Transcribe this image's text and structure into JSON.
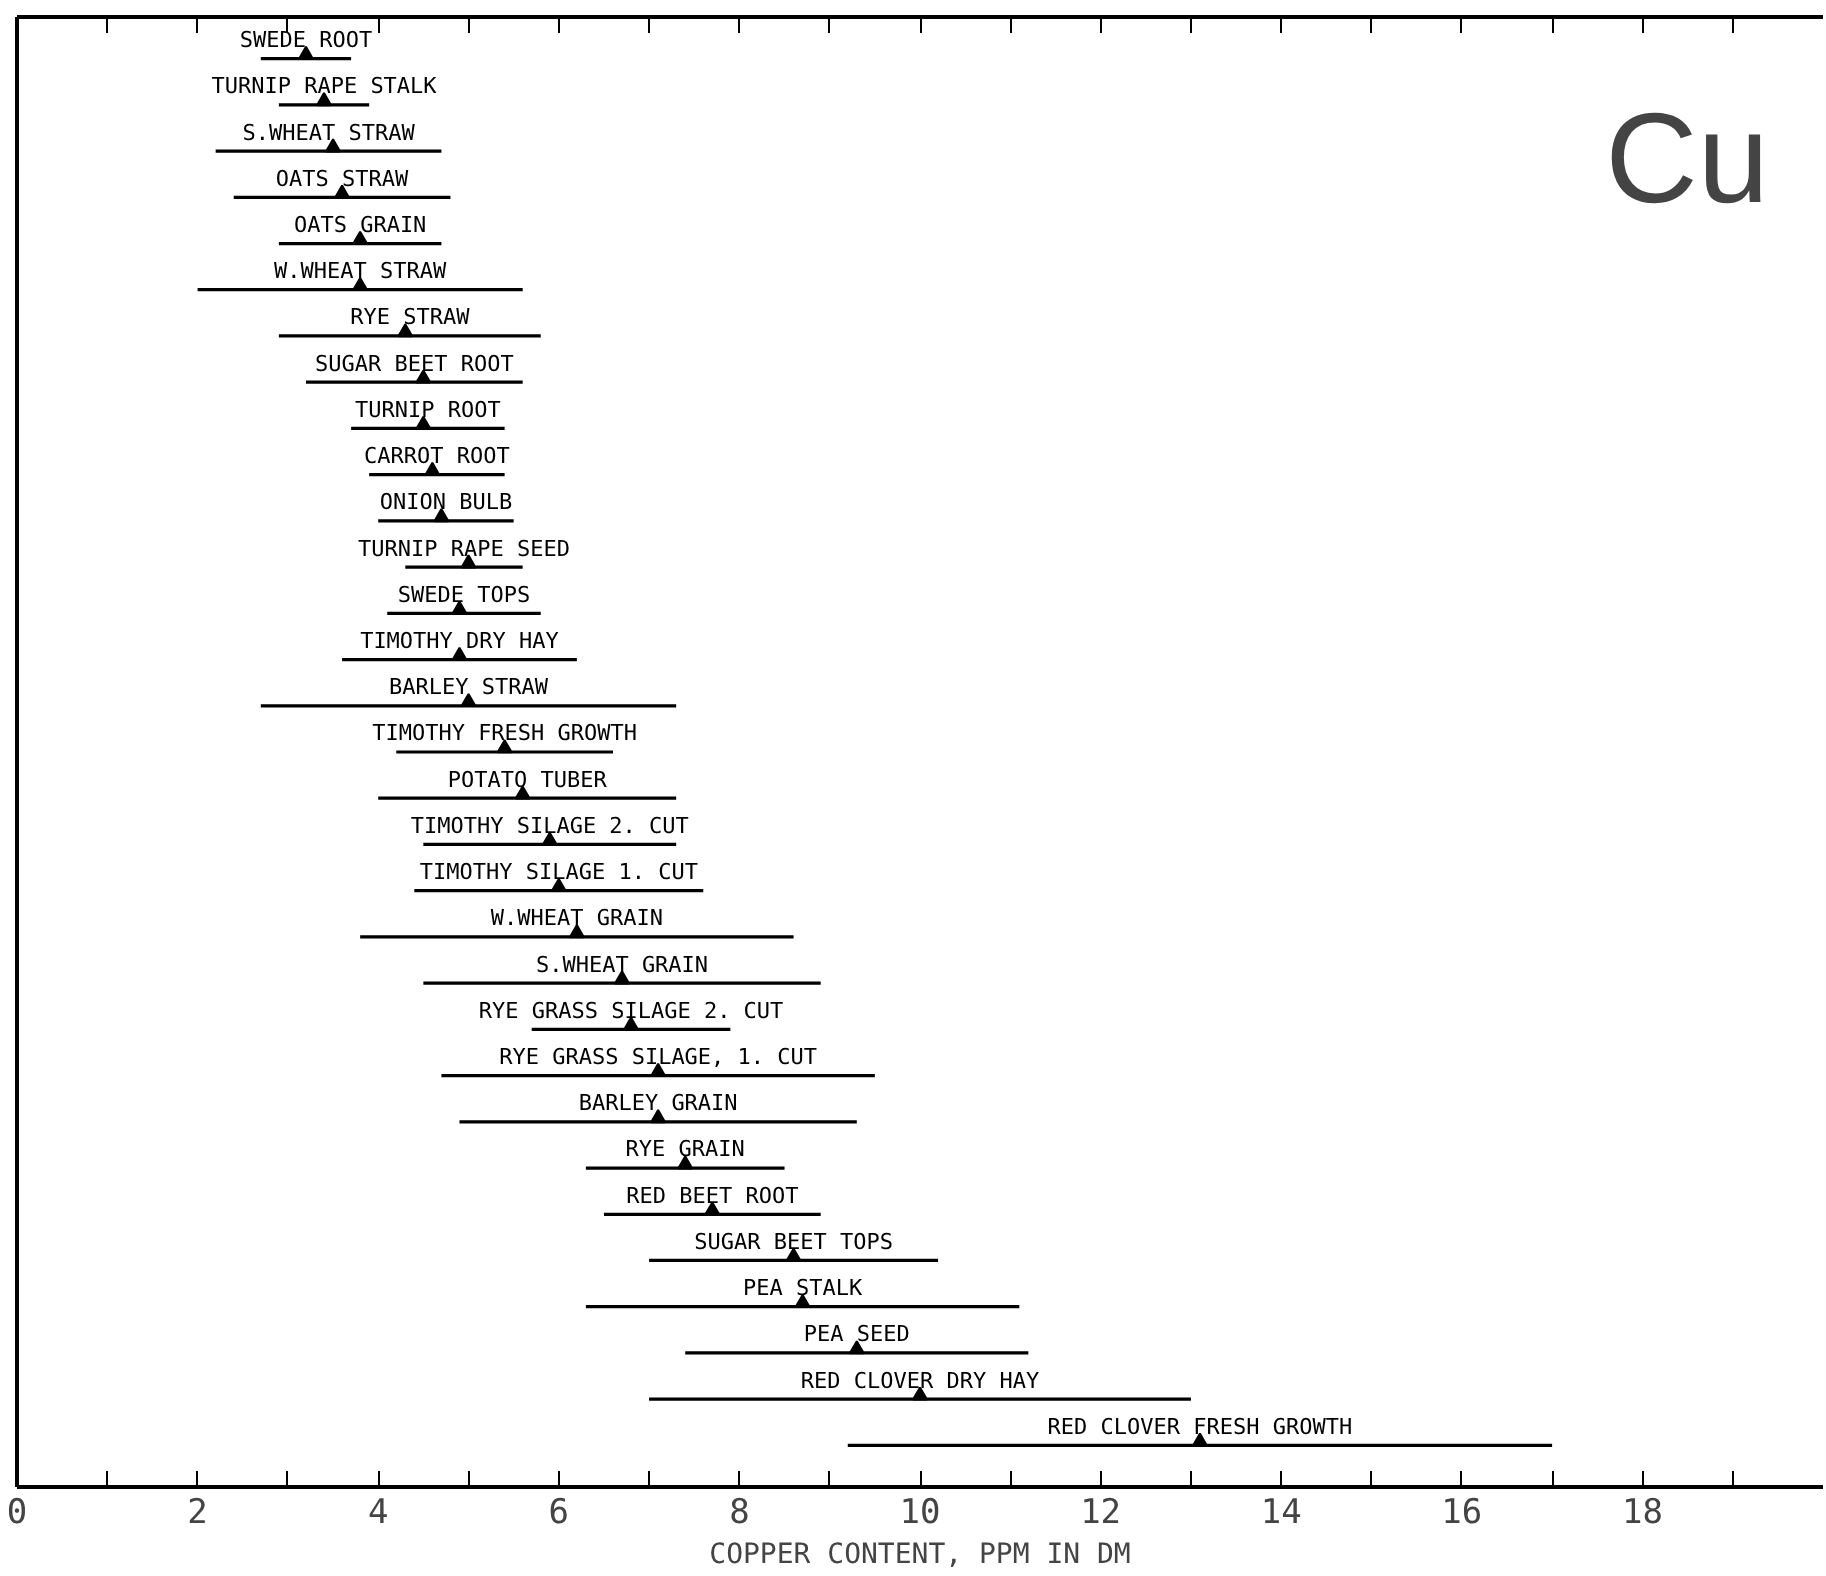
{
  "chart_data": {
    "type": "bar",
    "orientation": "horizontal",
    "title": "Cu",
    "xlabel": "COPPER CONTENT, PPM IN DM",
    "categories": [
      "SWEDE ROOT",
      "TURNIP RAPE STALK",
      "S.WHEAT STRAW",
      "OATS STRAW",
      "OATS GRAIN",
      "W.WHEAT STRAW",
      "RYE STRAW",
      "SUGAR BEET ROOT",
      "TURNIP ROOT",
      "CARROT ROOT",
      "ONION BULB",
      "TURNIP RAPE SEED",
      "SWEDE TOPS",
      "TIMOTHY DRY HAY",
      "BARLEY STRAW",
      "TIMOTHY FRESH GROWTH",
      "POTATO TUBER",
      "TIMOTHY SILAGE 2. CUT",
      "TIMOTHY SILAGE 1. CUT",
      "W.WHEAT GRAIN",
      "S.WHEAT GRAIN",
      "RYE GRASS SILAGE 2. CUT",
      "RYE GRASS SILAGE, 1. CUT",
      "BARLEY GRAIN",
      "RYE GRAIN",
      "RED BEET ROOT",
      "SUGAR BEET TOPS",
      "PEA STALK",
      "PEA SEED",
      "RED CLOVER DRY HAY",
      "RED CLOVER FRESH GROWTH"
    ],
    "series": [
      {
        "type": "bar",
        "color": "#000000",
        "base": [
          2.7,
          2.9,
          2.2,
          2.4,
          2.9,
          2.0,
          2.9,
          3.2,
          3.7,
          3.9,
          4.0,
          4.3,
          4.1,
          3.6,
          2.7,
          4.2,
          4.0,
          4.5,
          4.4,
          3.8,
          4.5,
          5.7,
          4.7,
          4.9,
          6.3,
          6.5,
          7.0,
          6.3,
          7.4,
          7.0,
          9.2
        ],
        "values": [
          1.0,
          1.0,
          2.5,
          2.4,
          1.8,
          3.6,
          2.9,
          2.4,
          1.7,
          1.5,
          1.5,
          1.3,
          1.7,
          2.6,
          4.6,
          2.4,
          3.3,
          2.8,
          3.2,
          4.8,
          4.4,
          2.2,
          4.8,
          4.4,
          2.2,
          2.4,
          3.2,
          4.8,
          3.8,
          6.0,
          7.8
        ]
      },
      {
        "type": "scatter",
        "color": "#000000",
        "values": [
          3.2,
          3.4,
          3.5,
          3.6,
          3.8,
          3.8,
          4.3,
          4.5,
          4.5,
          4.6,
          4.7,
          5.0,
          4.9,
          4.9,
          5.0,
          5.4,
          5.6,
          5.9,
          6.0,
          6.2,
          6.7,
          6.8,
          7.1,
          7.1,
          7.4,
          7.7,
          8.6,
          8.7,
          9.3,
          10.0,
          13.1
        ]
      }
    ],
    "marker": "triangle",
    "xlim": [
      0,
      20
    ],
    "xticks": [
      0,
      {
        "value": 1,
        "label": null
      },
      2,
      {
        "value": 3,
        "label": null
      },
      4,
      {
        "value": 5,
        "label": null
      },
      6,
      {
        "value": 7,
        "label": null
      },
      8,
      {
        "value": 9,
        "label": null
      },
      10,
      {
        "value": 11,
        "label": null
      },
      12,
      {
        "value": 13,
        "label": null
      },
      14,
      {
        "value": 15,
        "label": null
      },
      16,
      {
        "value": 17,
        "label": null
      },
      18,
      {
        "value": 19,
        "label": null
      }
    ],
    "tick_labels": "x",
    "grid": false
  }
}
